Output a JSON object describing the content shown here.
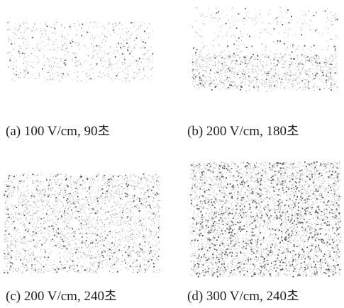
{
  "panels": [
    {
      "caption": "(a) 100 V/cm, 90초"
    },
    {
      "caption": "(b) 200 V/cm, 180초"
    },
    {
      "caption": "(c) 200 V/cm, 240초"
    },
    {
      "caption": "(d) 300 V/cm, 240초"
    }
  ]
}
